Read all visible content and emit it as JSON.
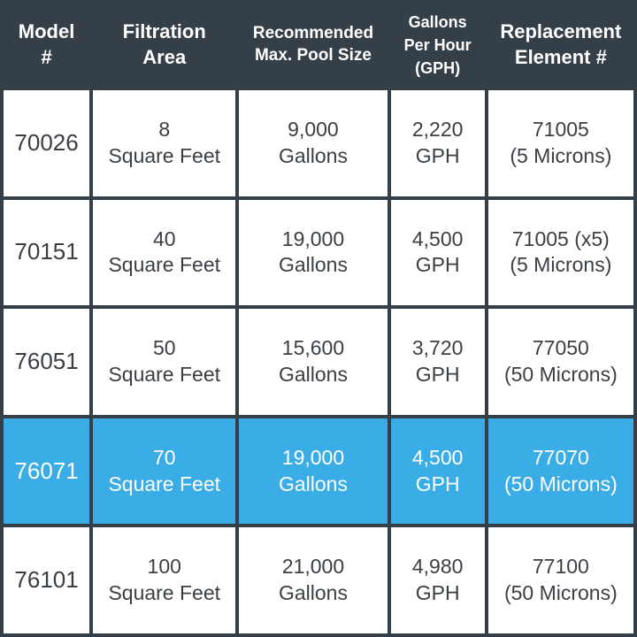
{
  "table": {
    "headers": [
      [
        "Model",
        "#"
      ],
      [
        "Filtration",
        "Area"
      ],
      [
        "Recommended",
        "Max. Pool Size"
      ],
      [
        "Gallons",
        "Per Hour",
        "(GPH)"
      ],
      [
        "Replacement",
        "Element #"
      ]
    ],
    "rows": [
      {
        "model": "70026",
        "area": [
          "8",
          "Square Feet"
        ],
        "pool": [
          "9,000",
          "Gallons"
        ],
        "gph": [
          "2,220",
          "GPH"
        ],
        "element": [
          "71005",
          "(5 Microns)"
        ]
      },
      {
        "model": "70151",
        "area": [
          "40",
          "Square Feet"
        ],
        "pool": [
          "19,000",
          "Gallons"
        ],
        "gph": [
          "4,500",
          "GPH"
        ],
        "element": [
          "71005 (x5)",
          "(5 Microns)"
        ]
      },
      {
        "model": "76051",
        "area": [
          "50",
          "Square Feet"
        ],
        "pool": [
          "15,600",
          "Gallons"
        ],
        "gph": [
          "3,720",
          "GPH"
        ],
        "element": [
          "77050",
          "(50 Microns)"
        ]
      },
      {
        "model": "76071",
        "area": [
          "70",
          "Square Feet"
        ],
        "pool": [
          "19,000",
          "Gallons"
        ],
        "gph": [
          "4,500",
          "GPH"
        ],
        "element": [
          "77070",
          "(50 Microns)"
        ]
      },
      {
        "model": "76101",
        "area": [
          "100",
          "Square Feet"
        ],
        "pool": [
          "21,000",
          "Gallons"
        ],
        "gph": [
          "4,980",
          "GPH"
        ],
        "element": [
          "77100",
          "(50 Microns)"
        ]
      }
    ],
    "highlighted_row_model": "76071"
  },
  "colors": {
    "header_bg": "#343f48",
    "cell_bg": "#ffffff",
    "highlight_bg": "#3aade6",
    "text_dark": "#3a3f44",
    "text_light": "#ffffff"
  }
}
